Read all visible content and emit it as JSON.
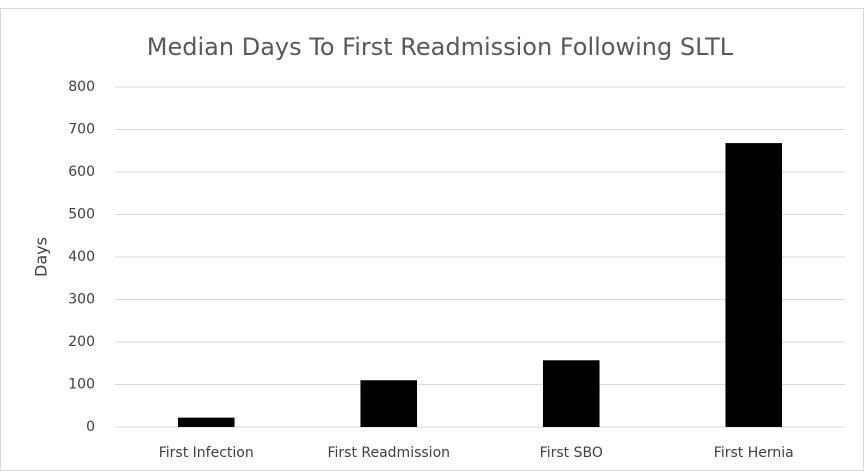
{
  "chart_data": {
    "type": "bar",
    "title": "Median Days To First Readmission Following SLTL",
    "y_label": "Days",
    "categories": [
      "First Infection",
      "First Readmission",
      "First SBO",
      "First Hernia"
    ],
    "values": [
      22,
      110,
      157,
      668
    ],
    "color": "#000000",
    "ylim": [
      0,
      800
    ],
    "yticks": [
      0,
      100,
      200,
      300,
      400,
      500,
      600,
      700,
      800
    ],
    "grid": true
  }
}
